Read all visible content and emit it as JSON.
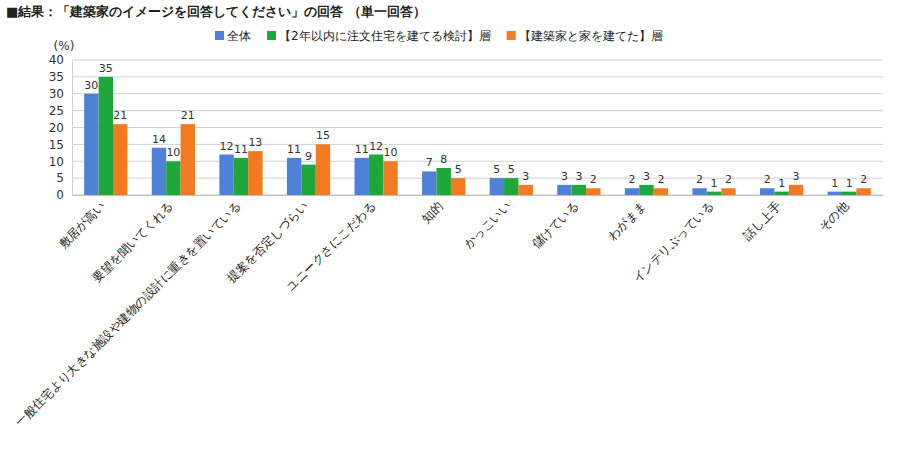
{
  "chart_data": {
    "type": "bar",
    "title": "■結果：「建築家のイメージを回答してください」の回答 （単一回答）",
    "y_label": "(%)",
    "categories": [
      "敷居が高い",
      "要望を聞いてくれる",
      "一般住宅より大きな施設や建物の設計に重きを置いている",
      "提案を否定しづらい",
      "ユニークさにこだわる",
      "知的",
      "かっこいい",
      "儲けている",
      "わがまま",
      "インテリぶっている",
      "話し上手",
      "その他"
    ],
    "series": [
      {
        "name": "全体",
        "color": "#4f81d6",
        "values": [
          30,
          14,
          12,
          11,
          11,
          7,
          5,
          3,
          2,
          2,
          2,
          1
        ]
      },
      {
        "name": "【2年以内に注文住宅を建てる検討】層",
        "color": "#1ea83c",
        "values": [
          35,
          10,
          11,
          9,
          12,
          8,
          5,
          3,
          3,
          1,
          1,
          1
        ]
      },
      {
        "name": "【建築家と家を建てた】層",
        "color": "#f27b22",
        "values": [
          21,
          21,
          13,
          15,
          10,
          5,
          3,
          2,
          2,
          2,
          3,
          2
        ]
      }
    ],
    "ylim": [
      0,
      40
    ],
    "yticks": [
      0,
      5,
      10,
      15,
      20,
      25,
      30,
      35,
      40
    ],
    "grid": true,
    "legend": "top",
    "data_labels": true
  }
}
